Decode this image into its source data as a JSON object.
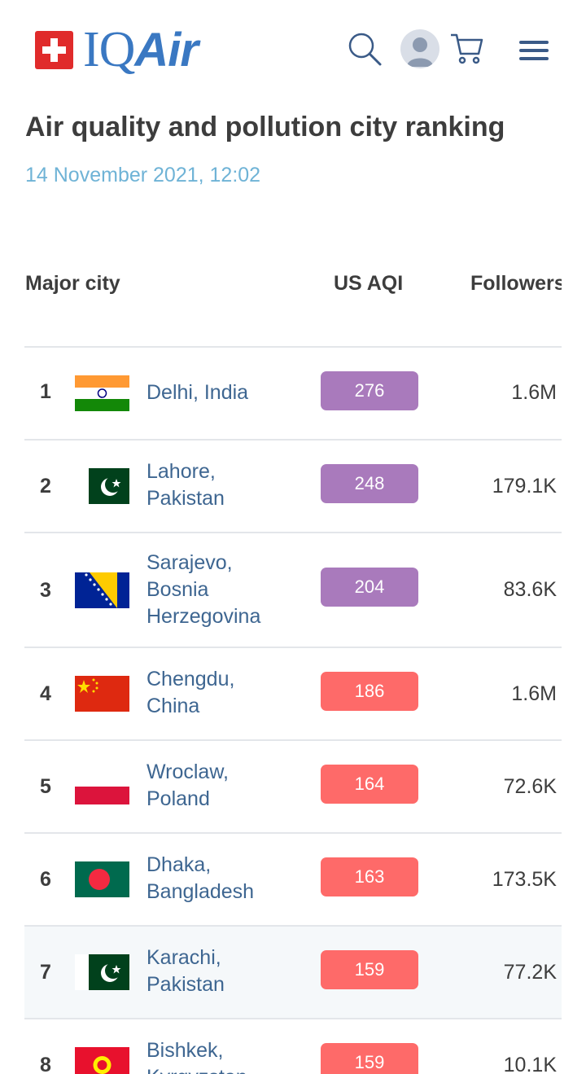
{
  "header": {
    "logo_text_iq": "IQ",
    "logo_text_air": "Air"
  },
  "page": {
    "title": "Air quality and pollution city ranking",
    "date": "14 November 2021, 12:02"
  },
  "table": {
    "columns": [
      "Major city",
      "US AQI",
      "Followers"
    ],
    "rows": [
      {
        "rank": "1",
        "city_line1": "Delhi, India",
        "city_line2": "",
        "city_line3": "",
        "aqi": "276",
        "followers": "1.6M",
        "flag": "india",
        "aqi_color": "#a97abc"
      },
      {
        "rank": "2",
        "city_line1": "Lahore,",
        "city_line2": "Pakistan",
        "city_line3": "",
        "aqi": "248",
        "followers": "179.1K",
        "flag": "pakistan",
        "aqi_color": "#a97abc"
      },
      {
        "rank": "3",
        "city_line1": "Sarajevo,",
        "city_line2": "Bosnia",
        "city_line3": "Herzegovina",
        "aqi": "204",
        "followers": "83.6K",
        "flag": "bosnia",
        "aqi_color": "#a97abc"
      },
      {
        "rank": "4",
        "city_line1": "Chengdu,",
        "city_line2": "China",
        "city_line3": "",
        "aqi": "186",
        "followers": "1.6M",
        "flag": "china",
        "aqi_color": "#fe6a69"
      },
      {
        "rank": "5",
        "city_line1": "Wroclaw,",
        "city_line2": "Poland",
        "city_line3": "",
        "aqi": "164",
        "followers": "72.6K",
        "flag": "poland",
        "aqi_color": "#fe6a69"
      },
      {
        "rank": "6",
        "city_line1": "Dhaka,",
        "city_line2": "Bangladesh",
        "city_line3": "",
        "aqi": "163",
        "followers": "173.5K",
        "flag": "bangladesh",
        "aqi_color": "#fe6a69"
      },
      {
        "rank": "7",
        "city_line1": "Karachi,",
        "city_line2": "Pakistan",
        "city_line3": "",
        "aqi": "159",
        "followers": "77.2K",
        "flag": "pakistan",
        "aqi_color": "#fe6a69"
      },
      {
        "rank": "8",
        "city_line1": "Bishkek,",
        "city_line2": "Kyrgyzstan",
        "city_line3": "",
        "aqi": "159",
        "followers": "10.1K",
        "flag": "kyrgyzstan",
        "aqi_color": "#fe6a69"
      }
    ]
  },
  "colors": {
    "brand": "#3a78c2",
    "purple_aqi": "#a97abc",
    "red_aqi": "#fe6a69",
    "city_link": "#3e6691"
  }
}
